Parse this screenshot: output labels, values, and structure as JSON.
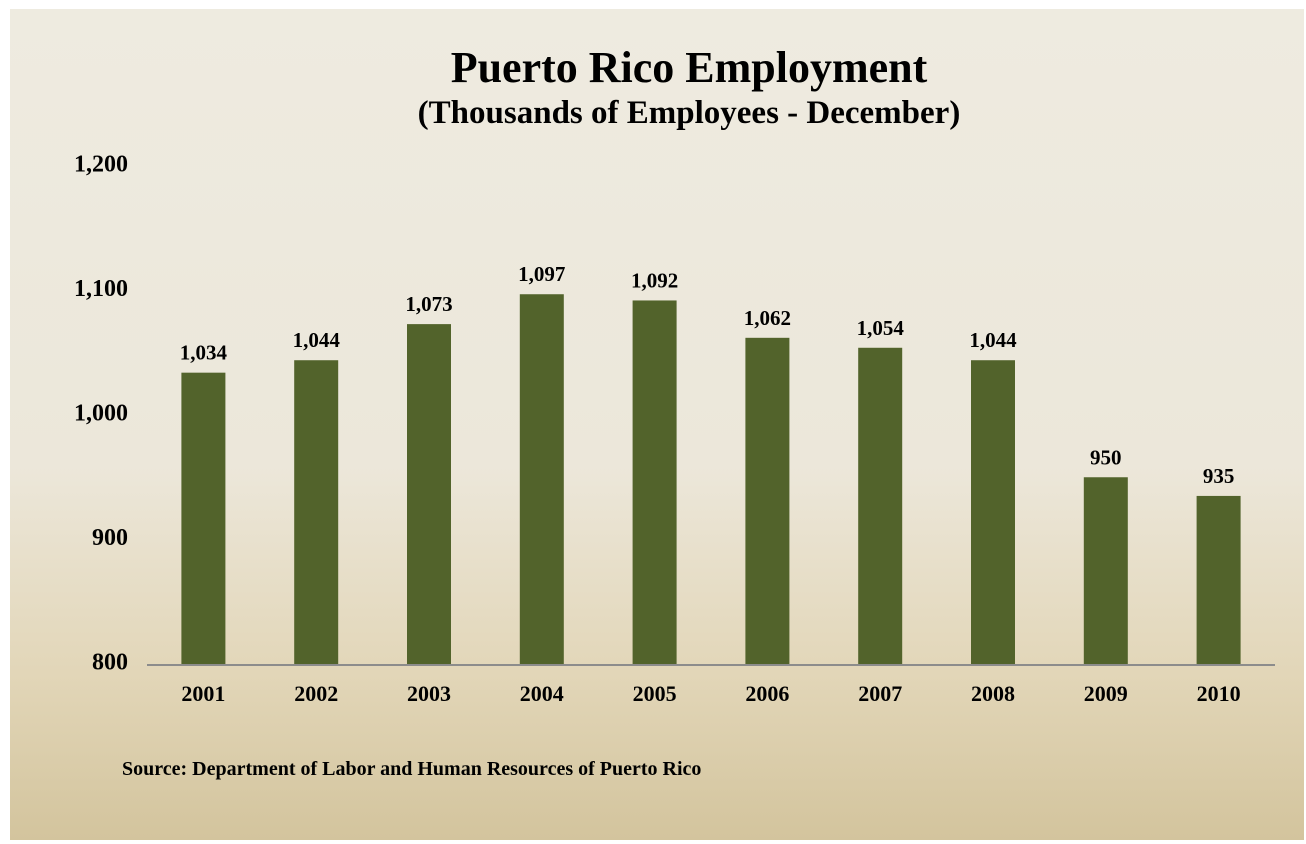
{
  "slide": {
    "source": "Source:  Department of Labor and Human Resources of  Puerto Rico"
  },
  "chart_data": {
    "type": "bar",
    "title": "Puerto Rico Employment",
    "subtitle": "(Thousands of Employees - December)",
    "categories": [
      "2001",
      "2002",
      "2003",
      "2004",
      "2005",
      "2006",
      "2007",
      "2008",
      "2009",
      "2010"
    ],
    "values": [
      1034,
      1044,
      1073,
      1097,
      1092,
      1062,
      1054,
      1044,
      950,
      935
    ],
    "data_labels": [
      "1,034",
      "1,044",
      "1,073",
      "1,097",
      "1,092",
      "1,062",
      "1,054",
      "1,044",
      "950",
      "935"
    ],
    "ylim": [
      800,
      1200
    ],
    "yticks": [
      800,
      900,
      1000,
      1100,
      1200
    ],
    "ytick_labels": [
      "800",
      "900",
      "1,000",
      "1,100",
      "1,200"
    ],
    "xlabel": "",
    "ylabel": "",
    "grid": false,
    "legend": "none",
    "bar_color": "#52632b",
    "axis_color": "#8c8c8c"
  }
}
